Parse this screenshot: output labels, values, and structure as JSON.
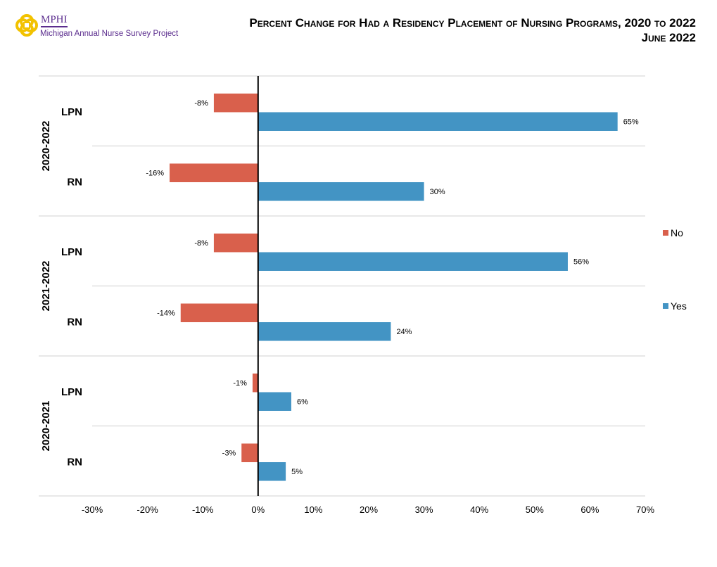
{
  "logo": {
    "name": "MPHI",
    "subtitle": "Michigan Annual Nurse Survey Project"
  },
  "header": {
    "title": "Percent Change for Had a Residency Placement of Nursing Programs, 2020 to 2022",
    "date": "June 2022"
  },
  "chart_data": {
    "type": "bar",
    "orientation": "horizontal",
    "title": "Percent Change for Had a Residency Placement of Nursing Programs, 2020 to 2022",
    "groups": [
      {
        "label": "2020-2022",
        "categories": [
          "LPN",
          "RN"
        ]
      },
      {
        "label": "2021-2022",
        "categories": [
          "LPN",
          "RN"
        ]
      },
      {
        "label": "2020-2021",
        "categories": [
          "LPN",
          "RN"
        ]
      }
    ],
    "series": [
      {
        "name": "No",
        "color": "#d9604c",
        "values": [
          -8,
          -16,
          -8,
          -14,
          -1,
          -3
        ],
        "labels": [
          "-8%",
          "-16%",
          "-8%",
          "-14%",
          "-1%",
          "-3%"
        ]
      },
      {
        "name": "Yes",
        "color": "#4394c4",
        "values": [
          65,
          30,
          56,
          24,
          6,
          5
        ],
        "labels": [
          "65%",
          "30%",
          "56%",
          "24%",
          "6%",
          "5%"
        ]
      }
    ],
    "xlim": [
      -30,
      70
    ],
    "xticks": [
      "-30%",
      "-20%",
      "-10%",
      "0%",
      "10%",
      "20%",
      "30%",
      "40%",
      "50%",
      "60%",
      "70%"
    ],
    "grid": "horizontal separators",
    "legend": "right"
  }
}
